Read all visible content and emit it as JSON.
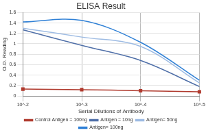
{
  "chart_data": {
    "type": "line",
    "title": "ELISA Result",
    "x_label": "Serial Dilutions of Antibody",
    "y_label": "O.D. Reading",
    "categories": [
      "10^-2",
      "10^-3",
      "10^-4",
      "10^-5"
    ],
    "series": [
      {
        "name": "Control Antigen = 100ng",
        "color": "#b03a2e",
        "marker": "square",
        "values": [
          0.13,
          0.12,
          0.1,
          0.08
        ]
      },
      {
        "name": "Antigen = 10ng",
        "color": "#4f6fa8",
        "marker": "none",
        "values": [
          1.27,
          0.97,
          0.68,
          0.18
        ]
      },
      {
        "name": "Antigen= 50ng",
        "color": "#9dbbe3",
        "marker": "none",
        "values": [
          1.3,
          1.13,
          0.95,
          0.25
        ]
      },
      {
        "name": "Antigen= 100ng",
        "color": "#2f80d6",
        "marker": "none",
        "values": [
          1.42,
          1.45,
          1.03,
          0.3
        ]
      }
    ],
    "ylim": [
      0,
      1.6
    ],
    "yticks": [
      0,
      0.2,
      0.4,
      0.6,
      0.8,
      1,
      1.2,
      1.4,
      1.6
    ],
    "grid": true,
    "legend": "bottom"
  }
}
